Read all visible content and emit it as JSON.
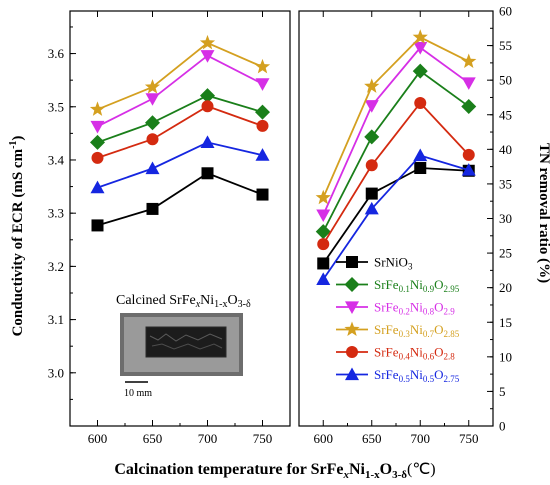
{
  "chart_data": [
    {
      "type": "line",
      "panel": "left",
      "x": [
        600,
        650,
        700,
        750
      ],
      "xlim": [
        575,
        775
      ],
      "xticks": [
        "600",
        "650",
        "700",
        "750"
      ],
      "ylabel": "Conductivity of ECR (mS cm",
      "ylabel_sup": "-1",
      "ylabel_close": ")",
      "ylim": [
        2.9,
        3.68
      ],
      "yticks": [
        "3.0",
        "3.1",
        "3.2",
        "3.3",
        "3.4",
        "3.5",
        "3.6"
      ],
      "yticks_values": [
        3.0,
        3.1,
        3.2,
        3.3,
        3.4,
        3.5,
        3.6
      ],
      "annotation": {
        "prefix": "Calcined SrFe",
        "x_sym": "x",
        "mid": "Ni",
        "sub": "1-x",
        "o": "O",
        "o_sub": "3-δ"
      },
      "scale_bar_label": "10 mm",
      "series": [
        {
          "values": [
            3.277,
            3.308,
            3.375,
            3.335
          ],
          "color": "#000000",
          "marker": "square"
        },
        {
          "values": [
            3.433,
            3.47,
            3.521,
            3.49
          ],
          "color": "#1a7f1a",
          "marker": "diamond"
        },
        {
          "values": [
            3.463,
            3.515,
            3.596,
            3.543
          ],
          "color": "#d62fe6",
          "marker": "triangle-down"
        },
        {
          "values": [
            3.495,
            3.537,
            3.62,
            3.575
          ],
          "color": "#d4a020",
          "marker": "star"
        },
        {
          "values": [
            3.404,
            3.439,
            3.501,
            3.464
          ],
          "color": "#d42a10",
          "marker": "circle"
        },
        {
          "values": [
            3.348,
            3.384,
            3.433,
            3.409
          ],
          "color": "#1526e0",
          "marker": "triangle-up"
        }
      ]
    },
    {
      "type": "line",
      "panel": "right",
      "x": [
        600,
        650,
        700,
        750
      ],
      "xlim": [
        575,
        775
      ],
      "xticks": [
        "600",
        "650",
        "700",
        "750"
      ],
      "ylabel": "TN removal ratio (%)",
      "ylim": [
        0,
        60
      ],
      "yticks": [
        "0",
        "5",
        "10",
        "15",
        "20",
        "25",
        "30",
        "35",
        "40",
        "45",
        "50",
        "55",
        "60"
      ],
      "yticks_values": [
        0,
        5,
        10,
        15,
        20,
        25,
        30,
        35,
        40,
        45,
        50,
        55,
        60
      ],
      "series": [
        {
          "name": {
            "a": "SrNiO",
            "b": "3"
          },
          "values": [
            23.5,
            33.6,
            37.3,
            36.9
          ],
          "color": "#000000",
          "marker": "square"
        },
        {
          "name": {
            "a": "SrFe",
            "b": "0.1",
            "c": "Ni",
            "d": "0.9",
            "e": "O",
            "f": "2.95"
          },
          "values": [
            28.1,
            41.8,
            51.3,
            46.2
          ],
          "color": "#1a7f1a",
          "marker": "diamond"
        },
        {
          "name": {
            "a": "SrFe",
            "b": "0.2",
            "c": "Ni",
            "d": "0.8",
            "e": "O",
            "f": "2.9"
          },
          "values": [
            30.5,
            46.3,
            54.7,
            49.6
          ],
          "color": "#d62fe6",
          "marker": "triangle-down"
        },
        {
          "name": {
            "a": "SrFe",
            "b": "0.3",
            "c": "Ni",
            "d": "0.7",
            "e": "O",
            "f": "2.85"
          },
          "values": [
            33.0,
            49.1,
            56.2,
            52.7
          ],
          "color": "#d4a020",
          "marker": "star"
        },
        {
          "name": {
            "a": "SrFe",
            "b": "0.4",
            "c": "Ni",
            "d": "0.6",
            "e": "O",
            "f": "2.8"
          },
          "values": [
            26.3,
            37.7,
            46.7,
            39.2
          ],
          "color": "#d42a10",
          "marker": "circle"
        },
        {
          "name": {
            "a": "SrFe",
            "b": "0.5",
            "c": "Ni",
            "d": "0.5",
            "e": "O",
            "f": "2.75"
          },
          "values": [
            21.2,
            31.4,
            39.1,
            37.0
          ],
          "color": "#1526e0",
          "marker": "triangle-up"
        }
      ],
      "legend": "bottom-right"
    }
  ],
  "xlabel": {
    "prefix": "Calcination temperature for SrFe",
    "x_sym": "x",
    "mid": "Ni",
    "sub": "1-x",
    "o": "O",
    "o_sub": "3-δ",
    "suffix": "(℃)"
  }
}
